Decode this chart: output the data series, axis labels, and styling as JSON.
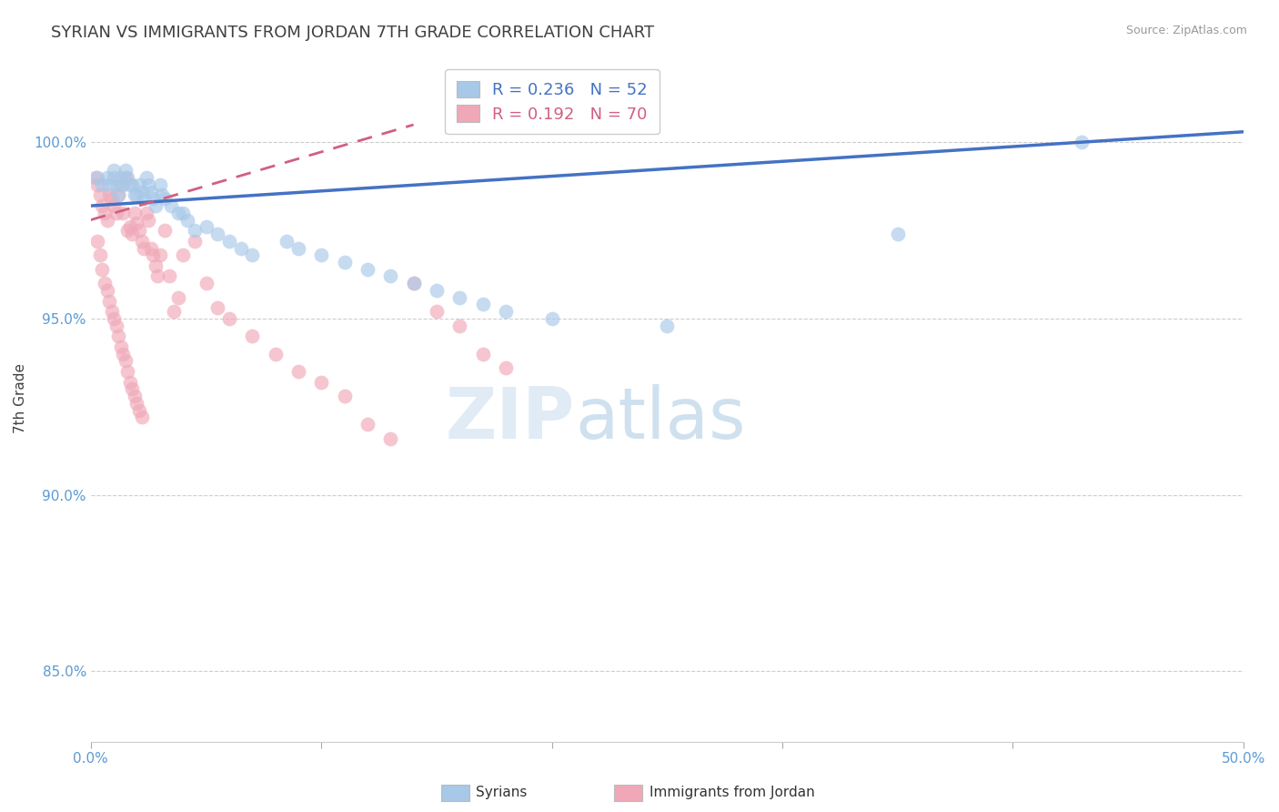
{
  "title": "SYRIAN VS IMMIGRANTS FROM JORDAN 7TH GRADE CORRELATION CHART",
  "source": "Source: ZipAtlas.com",
  "ylabel": "7th Grade",
  "xlim": [
    0.0,
    50.0
  ],
  "ylim": [
    0.83,
    1.025
  ],
  "legend_R_blue": "R = 0.236",
  "legend_N_blue": "N = 52",
  "legend_R_pink": "R = 0.192",
  "legend_N_pink": "N = 70",
  "legend_label_blue": "Syrians",
  "legend_label_pink": "Immigrants from Jordan",
  "blue_color": "#a8c8e8",
  "pink_color": "#f0a8b8",
  "trend_blue": "#4472c4",
  "trend_pink": "#d06080",
  "title_color": "#404040",
  "axis_color": "#5b9bd5",
  "grid_color": "#c8c8c8",
  "blue_trend_x0": 0.0,
  "blue_trend_y0": 0.982,
  "blue_trend_x1": 50.0,
  "blue_trend_y1": 1.003,
  "pink_trend_x0": 0.0,
  "pink_trend_y0": 0.978,
  "pink_trend_x1": 14.0,
  "pink_trend_y1": 1.005,
  "syrians_x": [
    0.3,
    0.5,
    0.7,
    0.8,
    1.0,
    1.0,
    1.1,
    1.2,
    1.3,
    1.4,
    1.5,
    1.6,
    1.7,
    1.8,
    1.9,
    2.0,
    2.1,
    2.2,
    2.3,
    2.4,
    2.5,
    2.6,
    2.7,
    2.8,
    3.0,
    3.1,
    3.2,
    3.5,
    3.8,
    4.0,
    4.2,
    4.5,
    5.0,
    5.5,
    6.0,
    6.5,
    7.0,
    8.5,
    9.0,
    10.0,
    11.0,
    12.0,
    13.0,
    14.0,
    15.0,
    16.0,
    17.0,
    18.0,
    20.0,
    25.0,
    35.0,
    43.0
  ],
  "syrians_y": [
    0.99,
    0.988,
    0.99,
    0.988,
    0.99,
    0.992,
    0.988,
    0.985,
    0.99,
    0.988,
    0.992,
    0.99,
    0.988,
    0.988,
    0.985,
    0.985,
    0.988,
    0.986,
    0.984,
    0.99,
    0.988,
    0.986,
    0.984,
    0.982,
    0.988,
    0.985,
    0.984,
    0.982,
    0.98,
    0.98,
    0.978,
    0.975,
    0.976,
    0.974,
    0.972,
    0.97,
    0.968,
    0.972,
    0.97,
    0.968,
    0.966,
    0.964,
    0.962,
    0.96,
    0.958,
    0.956,
    0.954,
    0.952,
    0.95,
    0.948,
    0.974,
    1.0
  ],
  "jordan_x": [
    0.2,
    0.3,
    0.4,
    0.5,
    0.6,
    0.7,
    0.8,
    0.9,
    1.0,
    1.1,
    1.2,
    1.3,
    1.4,
    1.5,
    1.6,
    1.7,
    1.8,
    1.9,
    2.0,
    2.1,
    2.2,
    2.3,
    2.4,
    2.5,
    2.6,
    2.7,
    2.8,
    2.9,
    3.0,
    3.2,
    3.4,
    3.6,
    3.8,
    4.0,
    4.5,
    5.0,
    5.5,
    6.0,
    7.0,
    8.0,
    9.0,
    10.0,
    11.0,
    12.0,
    13.0,
    14.0,
    15.0,
    16.0,
    17.0,
    18.0,
    0.3,
    0.4,
    0.5,
    0.6,
    0.7,
    0.8,
    0.9,
    1.0,
    1.1,
    1.2,
    1.3,
    1.4,
    1.5,
    1.6,
    1.7,
    1.8,
    1.9,
    2.0,
    2.1,
    2.2
  ],
  "jordan_y": [
    0.99,
    0.988,
    0.985,
    0.982,
    0.98,
    0.978,
    0.985,
    0.984,
    0.982,
    0.98,
    0.985,
    0.988,
    0.98,
    0.99,
    0.975,
    0.976,
    0.974,
    0.98,
    0.977,
    0.975,
    0.972,
    0.97,
    0.98,
    0.978,
    0.97,
    0.968,
    0.965,
    0.962,
    0.968,
    0.975,
    0.962,
    0.952,
    0.956,
    0.968,
    0.972,
    0.96,
    0.953,
    0.95,
    0.945,
    0.94,
    0.935,
    0.932,
    0.928,
    0.92,
    0.916,
    0.96,
    0.952,
    0.948,
    0.94,
    0.936,
    0.972,
    0.968,
    0.964,
    0.96,
    0.958,
    0.955,
    0.952,
    0.95,
    0.948,
    0.945,
    0.942,
    0.94,
    0.938,
    0.935,
    0.932,
    0.93,
    0.928,
    0.926,
    0.924,
    0.922
  ]
}
